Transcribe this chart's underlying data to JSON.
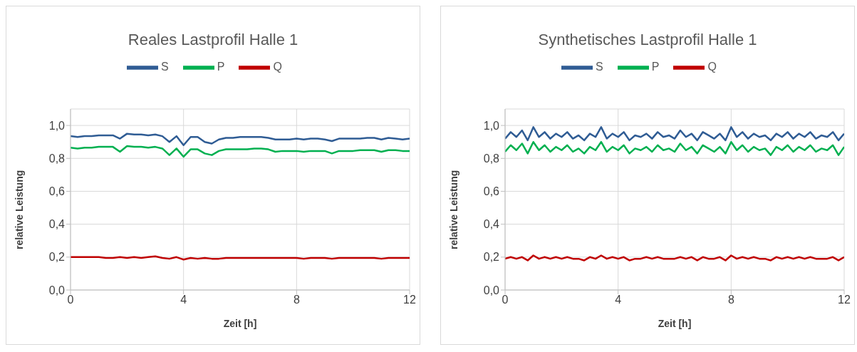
{
  "chart_data": [
    {
      "type": "line",
      "title": "Reales Lastprofil Halle 1",
      "xlabel": "Zeit [h]",
      "ylabel": "relative Leistung",
      "legend": "top",
      "grid": true,
      "xlim": [
        0,
        12
      ],
      "xticks": [
        0,
        4,
        8,
        12
      ],
      "ylim": [
        0,
        1.1
      ],
      "yticks": [
        {
          "value": 0,
          "label": "0,0"
        },
        {
          "value": 0.2,
          "label": "0,2"
        },
        {
          "value": 0.4,
          "label": "0,4"
        },
        {
          "value": 0.6,
          "label": "0,6"
        },
        {
          "value": 0.8,
          "label": "0,8"
        },
        {
          "value": 1.0,
          "label": "1,0"
        }
      ],
      "x": [
        0,
        0.25,
        0.5,
        0.75,
        1,
        1.25,
        1.5,
        1.75,
        2,
        2.25,
        2.5,
        2.75,
        3,
        3.25,
        3.5,
        3.75,
        4,
        4.25,
        4.5,
        4.75,
        5,
        5.25,
        5.5,
        5.75,
        6,
        6.25,
        6.5,
        6.75,
        7,
        7.25,
        7.5,
        7.75,
        8,
        8.25,
        8.5,
        8.75,
        9,
        9.25,
        9.5,
        9.75,
        10,
        10.25,
        10.5,
        10.75,
        11,
        11.25,
        11.5,
        11.75,
        12
      ],
      "series": [
        {
          "name": "S",
          "color": "#2f5c94",
          "values": [
            0.935,
            0.93,
            0.935,
            0.935,
            0.94,
            0.94,
            0.94,
            0.92,
            0.95,
            0.945,
            0.945,
            0.94,
            0.945,
            0.935,
            0.9,
            0.935,
            0.88,
            0.93,
            0.93,
            0.9,
            0.89,
            0.915,
            0.925,
            0.925,
            0.93,
            0.93,
            0.93,
            0.93,
            0.925,
            0.915,
            0.915,
            0.915,
            0.92,
            0.915,
            0.92,
            0.92,
            0.915,
            0.905,
            0.92,
            0.92,
            0.92,
            0.92,
            0.925,
            0.925,
            0.915,
            0.925,
            0.92,
            0.915,
            0.92
          ]
        },
        {
          "name": "P",
          "color": "#00b050",
          "values": [
            0.865,
            0.86,
            0.865,
            0.865,
            0.87,
            0.87,
            0.87,
            0.84,
            0.875,
            0.87,
            0.87,
            0.865,
            0.87,
            0.86,
            0.82,
            0.86,
            0.81,
            0.855,
            0.855,
            0.83,
            0.82,
            0.845,
            0.855,
            0.855,
            0.855,
            0.855,
            0.86,
            0.86,
            0.855,
            0.84,
            0.845,
            0.845,
            0.845,
            0.84,
            0.845,
            0.845,
            0.845,
            0.83,
            0.845,
            0.845,
            0.845,
            0.85,
            0.85,
            0.85,
            0.84,
            0.85,
            0.85,
            0.845,
            0.845
          ]
        },
        {
          "name": "Q",
          "color": "#c00000",
          "values": [
            0.2,
            0.2,
            0.2,
            0.2,
            0.2,
            0.195,
            0.195,
            0.2,
            0.195,
            0.2,
            0.195,
            0.2,
            0.205,
            0.195,
            0.19,
            0.2,
            0.185,
            0.195,
            0.19,
            0.195,
            0.19,
            0.19,
            0.195,
            0.195,
            0.195,
            0.195,
            0.195,
            0.195,
            0.195,
            0.195,
            0.195,
            0.195,
            0.195,
            0.19,
            0.195,
            0.195,
            0.195,
            0.19,
            0.195,
            0.195,
            0.195,
            0.195,
            0.195,
            0.195,
            0.19,
            0.195,
            0.195,
            0.195,
            0.195
          ]
        }
      ]
    },
    {
      "type": "line",
      "title": "Synthetisches Lastprofil Halle 1",
      "xlabel": "Zeit [h]",
      "ylabel": "relative Leistung",
      "legend": "top",
      "grid": true,
      "xlim": [
        0,
        12
      ],
      "xticks": [
        0,
        4,
        8,
        12
      ],
      "ylim": [
        0,
        1.1
      ],
      "yticks": [
        {
          "value": 0,
          "label": "0,0"
        },
        {
          "value": 0.2,
          "label": "0,2"
        },
        {
          "value": 0.4,
          "label": "0,4"
        },
        {
          "value": 0.6,
          "label": "0,6"
        },
        {
          "value": 0.8,
          "label": "0,8"
        },
        {
          "value": 1.0,
          "label": "1,0"
        }
      ],
      "x": [
        0,
        0.2,
        0.4,
        0.6,
        0.8,
        1,
        1.2,
        1.4,
        1.6,
        1.8,
        2,
        2.2,
        2.4,
        2.6,
        2.8,
        3,
        3.2,
        3.4,
        3.6,
        3.8,
        4,
        4.2,
        4.4,
        4.6,
        4.8,
        5,
        5.2,
        5.4,
        5.6,
        5.8,
        6,
        6.2,
        6.4,
        6.6,
        6.8,
        7,
        7.2,
        7.4,
        7.6,
        7.8,
        8,
        8.2,
        8.4,
        8.6,
        8.8,
        9,
        9.2,
        9.4,
        9.6,
        9.8,
        10,
        10.2,
        10.4,
        10.6,
        10.8,
        11,
        11.2,
        11.4,
        11.6,
        11.8,
        12
      ],
      "series": [
        {
          "name": "S",
          "color": "#2f5c94",
          "values": [
            0.92,
            0.96,
            0.93,
            0.97,
            0.91,
            0.99,
            0.93,
            0.96,
            0.92,
            0.95,
            0.93,
            0.96,
            0.92,
            0.94,
            0.91,
            0.95,
            0.93,
            0.99,
            0.92,
            0.95,
            0.93,
            0.96,
            0.91,
            0.94,
            0.93,
            0.95,
            0.92,
            0.96,
            0.93,
            0.94,
            0.92,
            0.97,
            0.93,
            0.95,
            0.91,
            0.96,
            0.94,
            0.92,
            0.95,
            0.91,
            0.99,
            0.93,
            0.96,
            0.92,
            0.95,
            0.93,
            0.94,
            0.91,
            0.95,
            0.93,
            0.96,
            0.92,
            0.95,
            0.93,
            0.96,
            0.92,
            0.94,
            0.93,
            0.96,
            0.91,
            0.95
          ]
        },
        {
          "name": "P",
          "color": "#00b050",
          "values": [
            0.84,
            0.88,
            0.85,
            0.89,
            0.83,
            0.9,
            0.85,
            0.88,
            0.84,
            0.87,
            0.85,
            0.88,
            0.84,
            0.86,
            0.83,
            0.87,
            0.85,
            0.9,
            0.84,
            0.87,
            0.85,
            0.88,
            0.83,
            0.86,
            0.85,
            0.87,
            0.84,
            0.88,
            0.85,
            0.86,
            0.84,
            0.89,
            0.85,
            0.87,
            0.83,
            0.88,
            0.86,
            0.84,
            0.87,
            0.83,
            0.9,
            0.85,
            0.88,
            0.84,
            0.87,
            0.85,
            0.86,
            0.82,
            0.87,
            0.85,
            0.88,
            0.84,
            0.87,
            0.85,
            0.88,
            0.84,
            0.86,
            0.85,
            0.88,
            0.82,
            0.87
          ]
        },
        {
          "name": "Q",
          "color": "#c00000",
          "values": [
            0.19,
            0.2,
            0.19,
            0.2,
            0.18,
            0.21,
            0.19,
            0.2,
            0.19,
            0.2,
            0.19,
            0.2,
            0.19,
            0.19,
            0.18,
            0.2,
            0.19,
            0.21,
            0.19,
            0.2,
            0.19,
            0.2,
            0.18,
            0.19,
            0.19,
            0.2,
            0.19,
            0.2,
            0.19,
            0.19,
            0.19,
            0.2,
            0.19,
            0.2,
            0.18,
            0.2,
            0.19,
            0.19,
            0.2,
            0.18,
            0.21,
            0.19,
            0.2,
            0.19,
            0.2,
            0.19,
            0.19,
            0.18,
            0.2,
            0.19,
            0.2,
            0.19,
            0.2,
            0.19,
            0.2,
            0.19,
            0.19,
            0.19,
            0.2,
            0.18,
            0.2
          ]
        }
      ]
    }
  ]
}
